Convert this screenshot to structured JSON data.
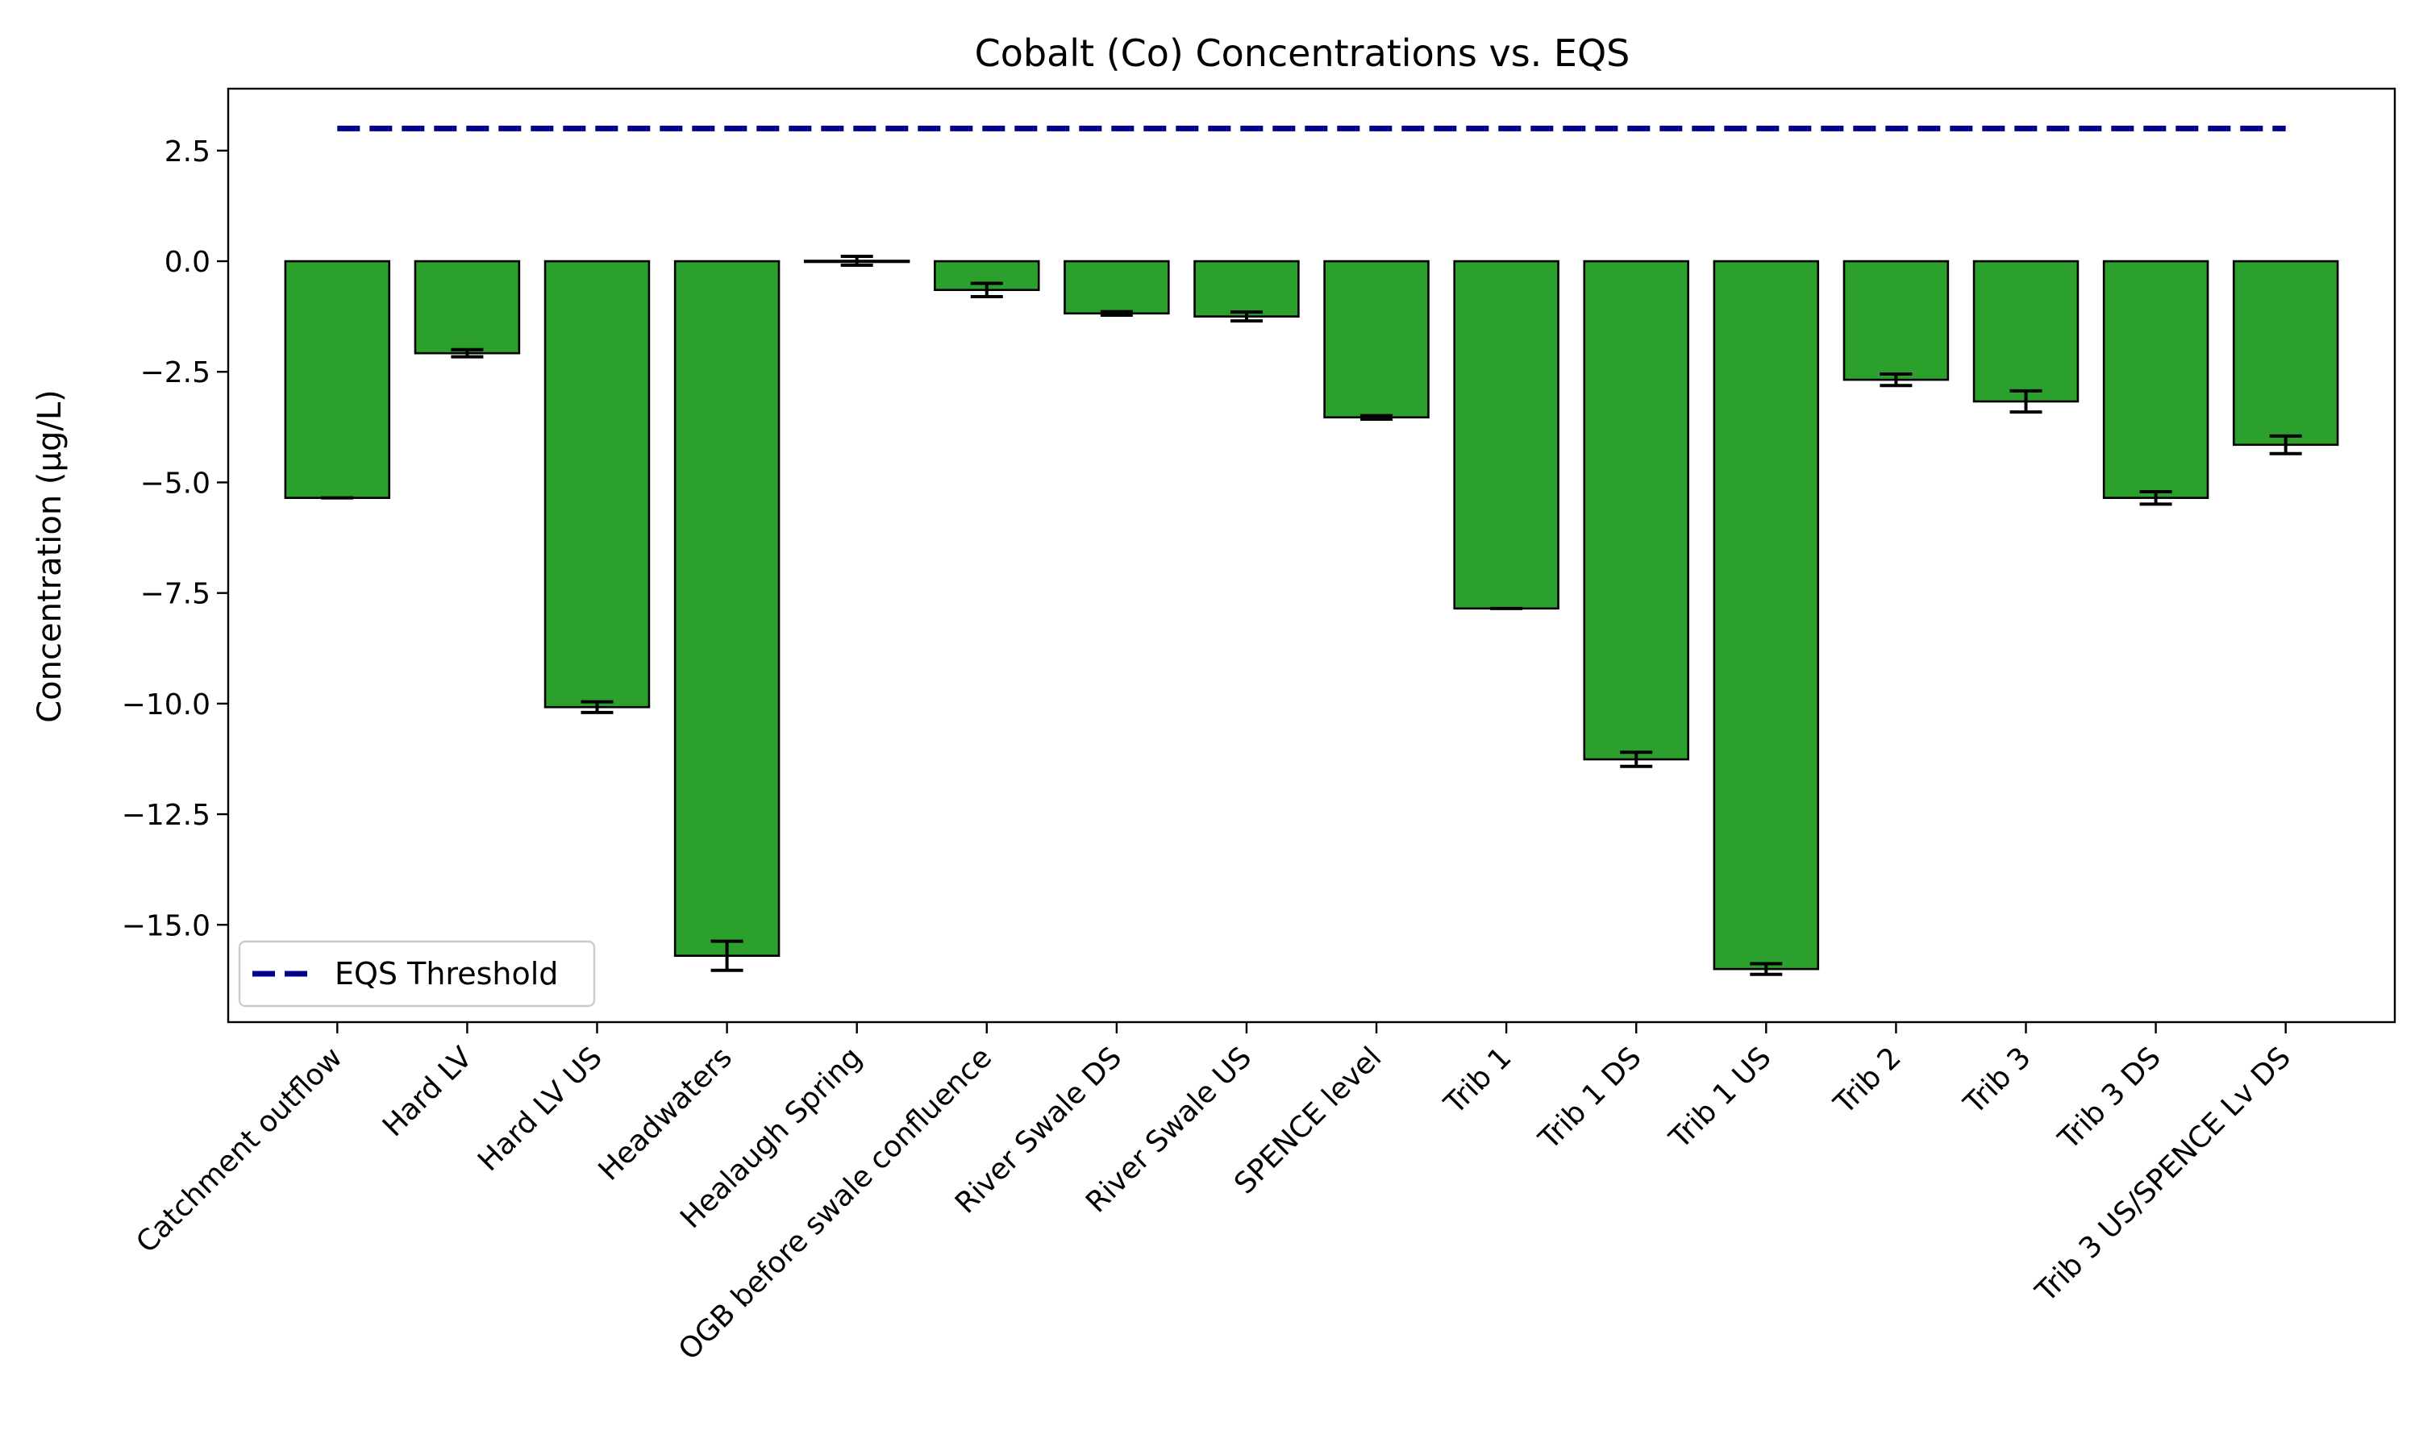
{
  "chart_data": {
    "type": "bar",
    "title": "Cobalt (Co) Concentrations vs. EQS",
    "xlabel": "",
    "ylabel": "Concentration (μg/L)",
    "ylim": [
      -17.2,
      3.9
    ],
    "yticks": [
      2.5,
      0.0,
      -2.5,
      -5.0,
      -7.5,
      -10.0,
      -12.5,
      -15.0
    ],
    "ytick_labels": [
      "2.5",
      "0.0",
      "−2.5",
      "−5.0",
      "−7.5",
      "−10.0",
      "−12.5",
      "−15.0"
    ],
    "categories": [
      "Catchment outflow",
      "Hard LV",
      "Hard LV US",
      "Headwaters",
      "Healaugh Spring",
      "OGB before swale confluence",
      "River Swale DS",
      "River Swale US",
      "SPENCE level",
      "Trib 1",
      "Trib 1 DS",
      "Trib 1 US",
      "Trib 2",
      "Trib 3",
      "Trib 3 DS",
      "Trib 3 US/SPENCE Lv DS"
    ],
    "series": [
      {
        "values": [
          -5.35,
          -2.08,
          -10.08,
          -15.7,
          0.01,
          -0.65,
          -1.18,
          -1.25,
          -3.53,
          -7.85,
          -11.26,
          -16.0,
          -2.68,
          -3.17,
          -5.35,
          -4.15
        ],
        "errors": [
          0.0,
          0.08,
          0.12,
          0.33,
          0.1,
          0.15,
          0.04,
          0.1,
          0.04,
          0.0,
          0.16,
          0.12,
          0.13,
          0.24,
          0.14,
          0.2
        ],
        "color": "#2ca02c"
      }
    ],
    "threshold": {
      "name": "EQS Threshold",
      "value": 3.0,
      "color": "#00008b",
      "style": "dashed"
    },
    "grid": false,
    "legend": {
      "position": "bottom-left",
      "entries": [
        "EQS Threshold"
      ]
    }
  }
}
